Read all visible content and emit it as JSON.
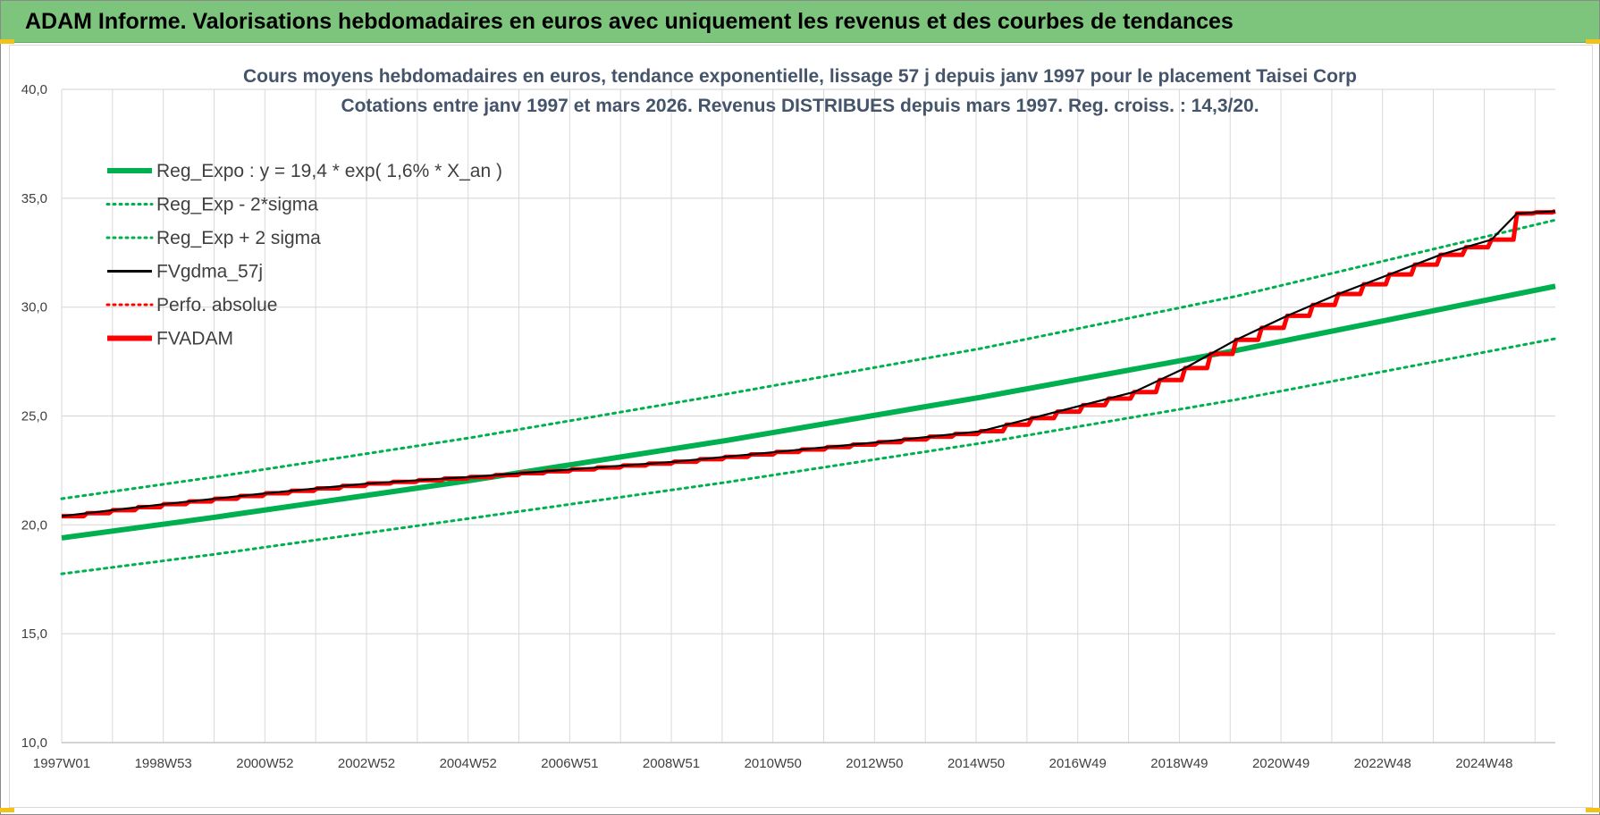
{
  "header": {
    "title": "ADAM Informe. Valorisations hebdomadaires en euros avec uniquement les revenus et des courbes de tendances"
  },
  "colors": {
    "banner": "#7dc57d",
    "trend": "#00b050",
    "fvgdma": "#000000",
    "fvadam": "#ff0000",
    "grid": "#d9d9d9",
    "title_text": "#44546a"
  },
  "chart_data": {
    "type": "line",
    "title": "Cours moyens hebdomadaires en euros, tendance exponentielle, lissage 57 j depuis janv 1997  pour le placement Taisei Corp",
    "subtitle": "Cotations entre janv 1997 et mars 2026. Revenus DISTRIBUES depuis mars 1997. Reg. croiss. : 14,3/20.",
    "xlabel": "",
    "ylabel": "",
    "ylim": [
      10,
      40
    ],
    "yticks": [
      "10,0",
      "15,0",
      "20,0",
      "25,0",
      "30,0",
      "35,0",
      "40,0"
    ],
    "xlim": [
      1997.0,
      2026.25
    ],
    "xticks": [
      "1997W01",
      "1998W53",
      "2000W52",
      "2002W52",
      "2004W52",
      "2006W51",
      "2008W51",
      "2010W50",
      "2012W50",
      "2014W50",
      "2016W49",
      "2018W49",
      "2020W49",
      "2022W48",
      "2024W48"
    ],
    "grid": true,
    "legend_position": "top-left",
    "series": [
      {
        "name": "Reg_Expo : y = 19,4 * exp( 1,6% *  X_an )",
        "style": "solid-thick",
        "color": "#00b050",
        "x": [
          1997.0,
          2000.0,
          2005.0,
          2010.0,
          2015.0,
          2020.0,
          2026.25
        ],
        "values": [
          19.4,
          20.35,
          22.04,
          23.87,
          25.86,
          28.01,
          30.96
        ]
      },
      {
        "name": "Reg_Exp - 2*sigma",
        "style": "dotted",
        "color": "#00b050",
        "x": [
          1997.0,
          2000.0,
          2005.0,
          2010.0,
          2015.0,
          2020.0,
          2026.25
        ],
        "values": [
          17.75,
          18.65,
          20.3,
          21.95,
          23.75,
          25.75,
          28.55
        ]
      },
      {
        "name": "Reg_Exp + 2 sigma",
        "style": "dotted",
        "color": "#00b050",
        "x": [
          1997.0,
          2000.0,
          2005.0,
          2010.0,
          2015.0,
          2020.0,
          2026.25
        ],
        "values": [
          21.2,
          22.2,
          24.0,
          26.0,
          28.1,
          30.5,
          34.0
        ]
      },
      {
        "name": "FVgdma_57j",
        "style": "solid",
        "color": "#000000",
        "x": [
          1997.0,
          1999.0,
          2001.0,
          2003.0,
          2005.0,
          2007.0,
          2009.0,
          2011.0,
          2013.0,
          2015.0,
          2016.5,
          2018.0,
          2019.0,
          2020.0,
          2021.0,
          2022.0,
          2023.0,
          2024.0,
          2025.0,
          2025.5,
          2026.25
        ],
        "values": [
          20.4,
          20.95,
          21.45,
          21.9,
          22.2,
          22.55,
          22.9,
          23.35,
          23.8,
          24.3,
          25.2,
          26.1,
          27.2,
          28.5,
          29.6,
          30.6,
          31.5,
          32.4,
          33.1,
          34.3,
          34.4
        ]
      },
      {
        "name": "Perfo. absolue",
        "style": "dotted",
        "color": "#ff0000",
        "x": [],
        "values": []
      },
      {
        "name": "FVADAM",
        "style": "stepped-thick",
        "color": "#ff0000",
        "x": [
          1997.0,
          1999.0,
          2001.0,
          2003.0,
          2005.0,
          2007.0,
          2009.0,
          2011.0,
          2013.0,
          2015.0,
          2016.5,
          2018.0,
          2019.0,
          2020.0,
          2021.0,
          2022.0,
          2023.0,
          2024.0,
          2025.0,
          2025.5,
          2026.25
        ],
        "values": [
          20.4,
          20.95,
          21.45,
          21.9,
          22.2,
          22.55,
          22.9,
          23.35,
          23.8,
          24.3,
          25.2,
          26.1,
          27.2,
          28.5,
          29.6,
          30.6,
          31.5,
          32.4,
          33.1,
          34.3,
          34.4
        ]
      }
    ]
  }
}
